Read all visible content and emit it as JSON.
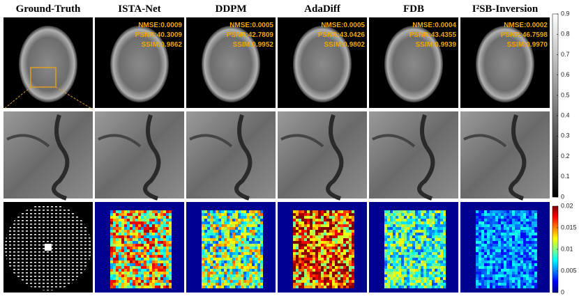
{
  "columns": [
    {
      "title": "Ground-Truth"
    },
    {
      "title": "ISTA-Net",
      "metrics": [
        "NMSE:0.0009",
        "PSNR:40.3009",
        "SSIM:0.9862"
      ]
    },
    {
      "title": "DDPM",
      "metrics": [
        "NMSE:0.0005",
        "PSNR:42.7809",
        "SSIM:0.9952"
      ]
    },
    {
      "title": "AdaDiff",
      "metrics": [
        "NMSE:0.0005",
        "PSNR:43.0426",
        "SSIM:0.9802"
      ]
    },
    {
      "title": "FDB",
      "metrics": [
        "NMSE:0.0004",
        "PSNR:43.4355",
        "SSIM:0.9939"
      ]
    },
    {
      "title": "I²SB-Inversion",
      "metrics": [
        "NMSE:0.0002",
        "PSNR:46.7598",
        "SSIM:0.9970"
      ]
    }
  ],
  "colorbars": [
    {
      "ticks": [
        0,
        0.1,
        0.2,
        0.3,
        0.4,
        0.5,
        0.6,
        0.7,
        0.8,
        0.9
      ]
    },
    {
      "ticks": [
        0,
        0.005,
        0.01,
        0.015,
        0.02
      ]
    }
  ]
}
